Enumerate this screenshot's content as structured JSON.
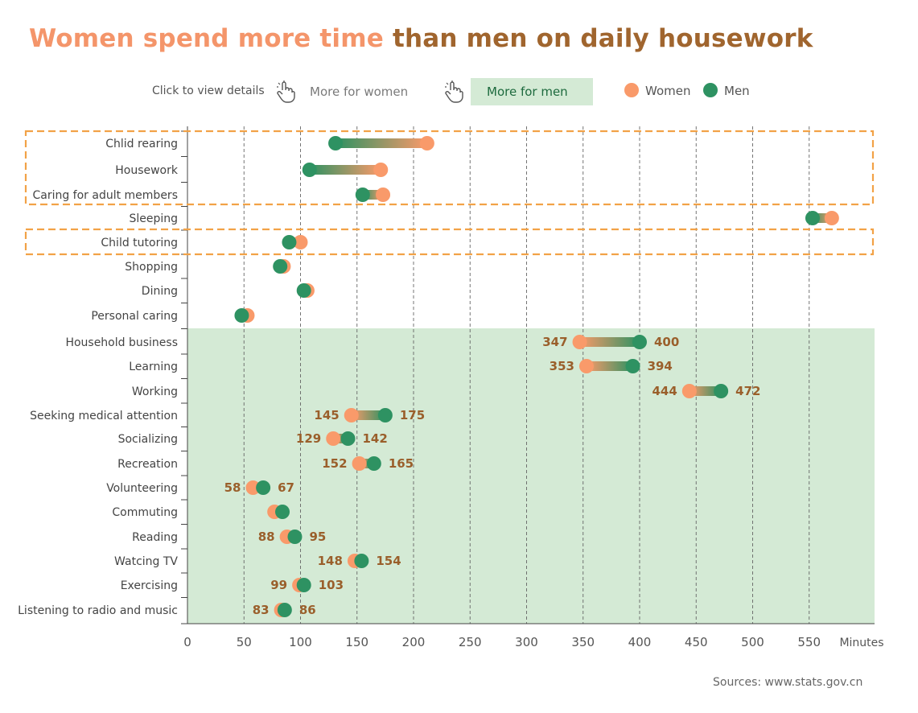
{
  "title": {
    "part1": "Women spend more time",
    "part2": " than men on daily housework"
  },
  "controls": {
    "hint": "Click to view details",
    "btn_women": "More for women",
    "btn_men": "More for men",
    "active": "men"
  },
  "legend": {
    "women": "Women",
    "men": "Men"
  },
  "source": "Sources: www.stats.gov.cn",
  "colors": {
    "women": "#f99a6a",
    "men": "#2e9262",
    "highlight": "#d4ead5",
    "box": "#f2a247",
    "value_label": "#9a5f2b"
  },
  "chart_data": {
    "type": "dumbbell",
    "x_unit": "Minutes",
    "xlim": [
      0,
      600
    ],
    "xticks": [
      0,
      50,
      100,
      150,
      200,
      250,
      300,
      350,
      400,
      450,
      500,
      550
    ],
    "grid": "vertical dashed",
    "legend_position": "top",
    "categories": [
      "Chlid rearing",
      "Housework",
      "Caring for adult members",
      "Sleeping",
      "Child tutoring",
      "Shopping",
      "Dining",
      "Personal caring",
      "Household business",
      "Learning",
      "Working",
      "Seeking medical attention",
      "Socializing",
      "Recreation",
      "Volunteering",
      "Commuting",
      "Reading",
      "Watcing TV",
      "Exercising",
      "Listening to radio and music"
    ],
    "series": [
      {
        "name": "Women",
        "values": [
          212,
          171,
          173,
          570,
          100,
          85,
          106,
          53,
          347,
          353,
          444,
          145,
          129,
          152,
          58,
          77,
          88,
          148,
          99,
          83
        ]
      },
      {
        "name": "Men",
        "values": [
          131,
          108,
          155,
          553,
          90,
          82,
          103,
          48,
          400,
          394,
          472,
          175,
          142,
          165,
          67,
          84,
          95,
          154,
          103,
          86
        ]
      }
    ],
    "value_labels": [
      {
        "category": "Household business",
        "women": "347",
        "men": "400"
      },
      {
        "category": "Learning",
        "women": "353",
        "men": "394"
      },
      {
        "category": "Working",
        "women": "444",
        "men": "472"
      },
      {
        "category": "Seeking medical attention",
        "women": "145",
        "men": "175"
      },
      {
        "category": "Socializing",
        "women": "129",
        "men": "142"
      },
      {
        "category": "Recreation",
        "women": "152",
        "men": "165"
      },
      {
        "category": "Volunteering",
        "women": "58",
        "men": "67"
      },
      {
        "category": "Reading",
        "women": "88",
        "men": "95"
      },
      {
        "category": "Watcing TV",
        "women": "148",
        "men": "154"
      },
      {
        "category": "Exercising",
        "women": "99",
        "men": "103"
      },
      {
        "category": "Listening to radio and music",
        "women": "83",
        "men": "86"
      }
    ],
    "highlight_men_rows": [
      "Household business",
      "Learning",
      "Working",
      "Seeking medical attention",
      "Socializing",
      "Recreation",
      "Volunteering",
      "Commuting",
      "Reading",
      "Watcing TV",
      "Exercising",
      "Listening to radio and music"
    ],
    "outlined_groups": [
      [
        "Chlid rearing",
        "Housework",
        "Caring for adult members"
      ],
      [
        "Child tutoring"
      ]
    ]
  }
}
